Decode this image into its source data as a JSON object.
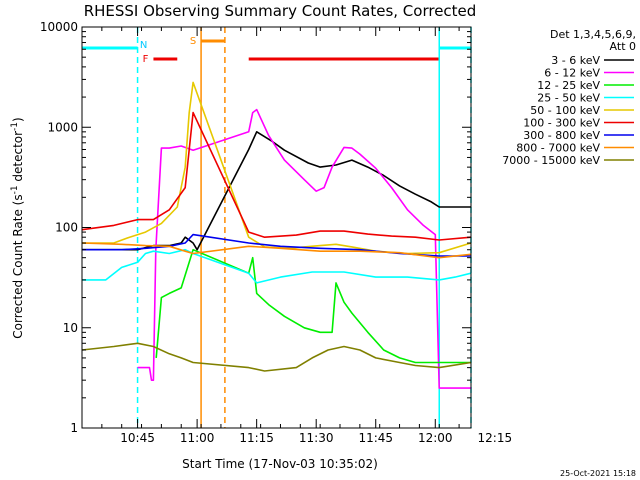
{
  "chart_data": {
    "type": "line",
    "title": "RHESSI Observing Summary Count Rates, Corrected",
    "xlabel": "Start Time (17-Nov-03 10:35:02)",
    "ylabel_main": "Corrected Count Rate (s",
    "ylabel_sup1": "-1",
    "ylabel_mid": " detector",
    "ylabel_sup2": "-1",
    "ylabel_end": ")",
    "y_scale": "log",
    "ylim": [
      1,
      10000
    ],
    "xlim_min": [
      -4,
      94
    ],
    "x_ticks": [
      {
        "t": 10,
        "label": "10:45"
      },
      {
        "t": 25,
        "label": "11:00"
      },
      {
        "t": 40,
        "label": "11:15"
      },
      {
        "t": 55,
        "label": "11:30"
      },
      {
        "t": 70,
        "label": "11:45"
      },
      {
        "t": 85,
        "label": "12:00"
      },
      {
        "t": 100,
        "label": "12:15"
      }
    ],
    "y_ticks": [
      {
        "v": 1,
        "label": "1"
      },
      {
        "v": 10,
        "label": "10"
      },
      {
        "v": 100,
        "label": "100"
      },
      {
        "v": 1000,
        "label": "1000"
      },
      {
        "v": 10000,
        "label": "10000"
      }
    ],
    "legend_header": [
      "Det 1,3,4,5,6,9,",
      "Att 0"
    ],
    "series": [
      {
        "name": "3 - 6 keV",
        "color": "#000000",
        "points": [
          [
            -4,
            60
          ],
          [
            10,
            60
          ],
          [
            14,
            66
          ],
          [
            18,
            66
          ],
          [
            21,
            70
          ],
          [
            22,
            80
          ],
          [
            24,
            70
          ],
          [
            25,
            60
          ],
          [
            38,
            600
          ],
          [
            40,
            900
          ],
          [
            44,
            720
          ],
          [
            47,
            590
          ],
          [
            53,
            440
          ],
          [
            56,
            400
          ],
          [
            60,
            420
          ],
          [
            64,
            470
          ],
          [
            68,
            400
          ],
          [
            72,
            330
          ],
          [
            76,
            260
          ],
          [
            80,
            215
          ],
          [
            84,
            180
          ],
          [
            86,
            160
          ],
          [
            94,
            160
          ]
        ]
      },
      {
        "name": "6 - 12 keV",
        "color": "#ff00ff",
        "points": [
          [
            10,
            4
          ],
          [
            13,
            4
          ],
          [
            13.5,
            3
          ],
          [
            14,
            3
          ],
          [
            14.6,
            60
          ],
          [
            16,
            620
          ],
          [
            18,
            620
          ],
          [
            21,
            650
          ],
          [
            24,
            590
          ],
          [
            38,
            900
          ],
          [
            39,
            1400
          ],
          [
            40,
            1500
          ],
          [
            43,
            830
          ],
          [
            47,
            470
          ],
          [
            52,
            300
          ],
          [
            55,
            230
          ],
          [
            57,
            250
          ],
          [
            59,
            400
          ],
          [
            62,
            630
          ],
          [
            64,
            620
          ],
          [
            66,
            540
          ],
          [
            70,
            390
          ],
          [
            74,
            250
          ],
          [
            78,
            150
          ],
          [
            82,
            105
          ],
          [
            85,
            85
          ],
          [
            86,
            2.5
          ],
          [
            90,
            2.5
          ],
          [
            94,
            2.5
          ]
        ]
      },
      {
        "name": "12 - 25 keV",
        "color": "#00ee00",
        "points": [
          [
            14.7,
            5
          ],
          [
            16,
            20
          ],
          [
            18,
            22
          ],
          [
            21,
            25
          ],
          [
            23,
            45
          ],
          [
            24,
            60
          ],
          [
            38,
            35
          ],
          [
            39,
            50
          ],
          [
            40,
            22
          ],
          [
            43,
            17
          ],
          [
            47,
            13
          ],
          [
            52,
            10
          ],
          [
            56,
            9
          ],
          [
            59,
            9
          ],
          [
            60,
            28
          ],
          [
            62,
            18
          ],
          [
            64,
            14
          ],
          [
            68,
            9
          ],
          [
            72,
            6
          ],
          [
            76,
            5
          ],
          [
            80,
            4.5
          ],
          [
            84,
            4.5
          ],
          [
            86,
            4.5
          ],
          [
            94,
            4.5
          ]
        ]
      },
      {
        "name": "25 - 50 keV",
        "color": "#00ffff",
        "points": [
          [
            -4,
            30
          ],
          [
            2,
            30
          ],
          [
            6,
            40
          ],
          [
            10,
            45
          ],
          [
            12,
            55
          ],
          [
            14,
            58
          ],
          [
            18,
            55
          ],
          [
            22,
            60
          ],
          [
            24,
            55
          ],
          [
            38,
            35
          ],
          [
            40,
            28
          ],
          [
            46,
            32
          ],
          [
            54,
            36
          ],
          [
            62,
            36
          ],
          [
            70,
            32
          ],
          [
            78,
            32
          ],
          [
            86,
            30
          ],
          [
            90,
            32
          ],
          [
            94,
            35
          ]
        ]
      },
      {
        "name": "50 - 100 keV",
        "color": "#e6c800",
        "points": [
          [
            -4,
            70
          ],
          [
            4,
            70
          ],
          [
            8,
            80
          ],
          [
            12,
            90
          ],
          [
            16,
            110
          ],
          [
            20,
            160
          ],
          [
            22,
            400
          ],
          [
            23,
            1400
          ],
          [
            24,
            2800
          ],
          [
            38,
            80
          ],
          [
            42,
            64
          ],
          [
            48,
            62
          ],
          [
            56,
            66
          ],
          [
            60,
            68
          ],
          [
            64,
            64
          ],
          [
            70,
            58
          ],
          [
            78,
            55
          ],
          [
            86,
            56
          ],
          [
            94,
            70
          ]
        ]
      },
      {
        "name": "100 - 300 keV",
        "color": "#ee0000",
        "points": [
          [
            -4,
            95
          ],
          [
            4,
            105
          ],
          [
            10,
            120
          ],
          [
            14,
            120
          ],
          [
            18,
            150
          ],
          [
            22,
            250
          ],
          [
            24,
            1400
          ],
          [
            38,
            90
          ],
          [
            42,
            80
          ],
          [
            50,
            84
          ],
          [
            56,
            92
          ],
          [
            62,
            92
          ],
          [
            68,
            86
          ],
          [
            74,
            82
          ],
          [
            80,
            80
          ],
          [
            86,
            75
          ],
          [
            94,
            80
          ]
        ]
      },
      {
        "name": "300 - 800 keV",
        "color": "#0000ee",
        "points": [
          [
            -4,
            60
          ],
          [
            6,
            60
          ],
          [
            12,
            62
          ],
          [
            18,
            65
          ],
          [
            22,
            70
          ],
          [
            24,
            85
          ],
          [
            38,
            70
          ],
          [
            46,
            65
          ],
          [
            56,
            62
          ],
          [
            66,
            60
          ],
          [
            76,
            55
          ],
          [
            86,
            52
          ],
          [
            94,
            52
          ]
        ]
      },
      {
        "name": "800 - 7000 keV",
        "color": "#ff8c00",
        "points": [
          [
            -4,
            70
          ],
          [
            6,
            68
          ],
          [
            12,
            66
          ],
          [
            18,
            65
          ],
          [
            22,
            58
          ],
          [
            24,
            55
          ],
          [
            38,
            65
          ],
          [
            46,
            62
          ],
          [
            56,
            58
          ],
          [
            66,
            58
          ],
          [
            76,
            56
          ],
          [
            86,
            50
          ],
          [
            94,
            54
          ]
        ]
      },
      {
        "name": "7000 - 15000 keV",
        "color": "#808000",
        "points": [
          [
            -4,
            6
          ],
          [
            4,
            6.5
          ],
          [
            10,
            7
          ],
          [
            14,
            6.5
          ],
          [
            18,
            5.5
          ],
          [
            21,
            5
          ],
          [
            24,
            4.5
          ],
          [
            38,
            4
          ],
          [
            42,
            3.7
          ],
          [
            50,
            4
          ],
          [
            54,
            5
          ],
          [
            58,
            6
          ],
          [
            62,
            6.5
          ],
          [
            66,
            6
          ],
          [
            70,
            5
          ],
          [
            76,
            4.5
          ],
          [
            80,
            4.2
          ],
          [
            86,
            4
          ],
          [
            94,
            4.5
          ]
        ]
      }
    ],
    "flags": [
      {
        "label": "N",
        "label_color": "#00c8ff",
        "color": "#00ffff",
        "segments": [
          [
            -4,
            10
          ],
          [
            86,
            94
          ]
        ]
      },
      {
        "label": "F",
        "label_color": "#ee0000",
        "color": "#ee0000",
        "segments": [
          [
            14,
            20
          ],
          [
            38,
            86
          ]
        ]
      },
      {
        "label": "S",
        "label_color": "#ff8c00",
        "color": "#ff8c00",
        "segments": [
          [
            26,
            32
          ]
        ]
      }
    ],
    "shaded_lines": [
      {
        "t": 26,
        "color": "#ff8c00",
        "dashed": false
      },
      {
        "t": 32,
        "color": "#ff8c00",
        "dashed": true
      },
      {
        "t": 10,
        "color": "#00ffff",
        "dashed": true
      },
      {
        "t": 86,
        "color": "#00ffff",
        "dashed": false
      },
      {
        "t": 94,
        "color": "#00ffff",
        "dashed": true
      }
    ],
    "grid": false,
    "legend_position": "top-right",
    "timestamp": "25-Oct-2021 15:18"
  }
}
